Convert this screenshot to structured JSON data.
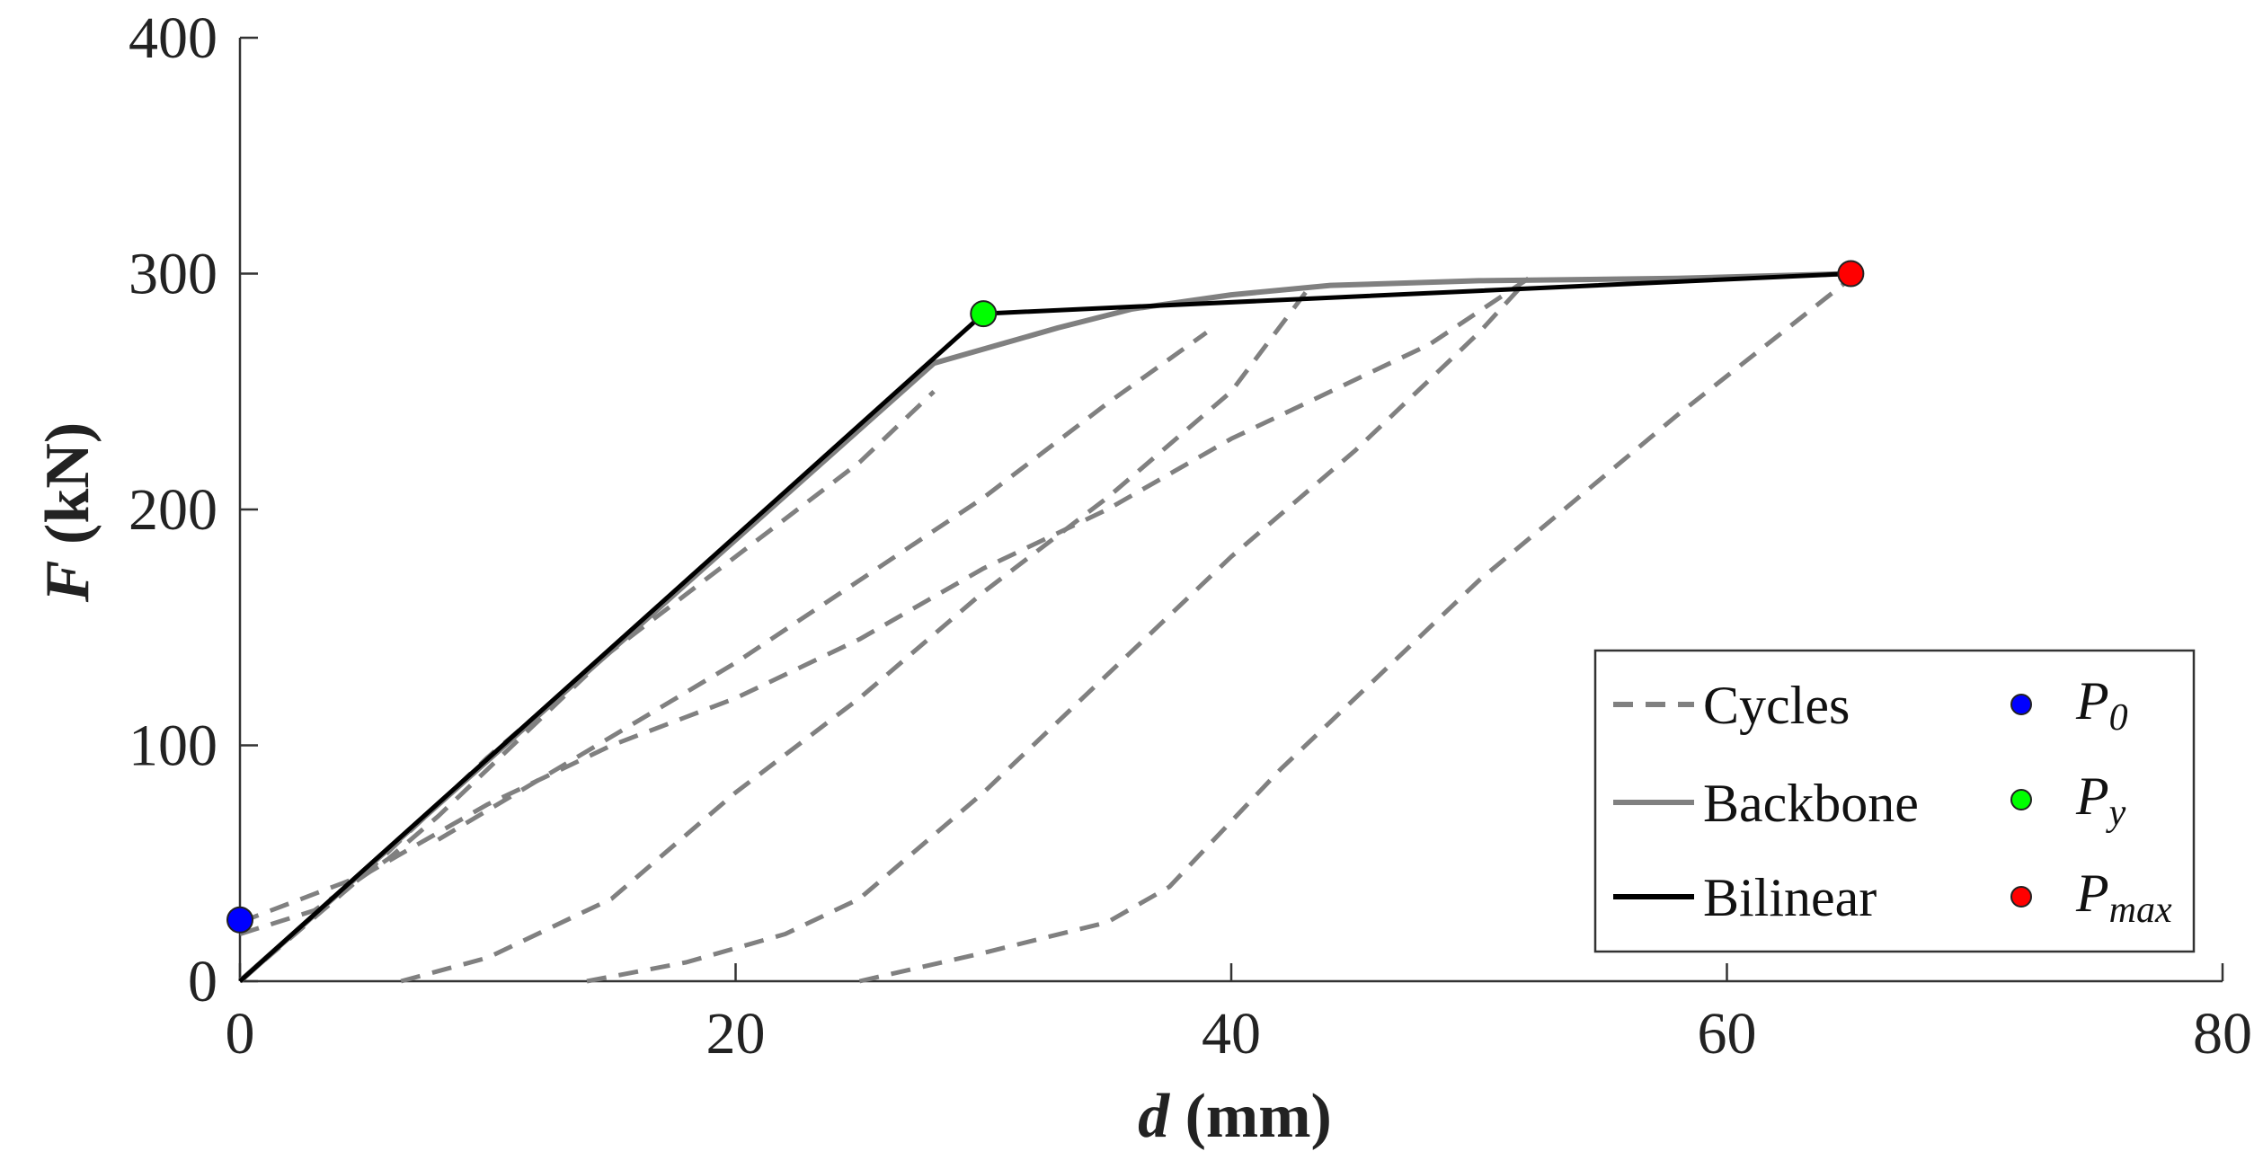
{
  "chart_data": {
    "type": "line",
    "xlabel_var": "d",
    "xlabel_unit": "(mm)",
    "ylabel_var": "F",
    "ylabel_unit": "(kN)",
    "xlim": [
      0,
      80
    ],
    "ylim": [
      0,
      400
    ],
    "xticks": [
      0,
      20,
      40,
      60,
      80
    ],
    "yticks": [
      0,
      100,
      200,
      300,
      400
    ],
    "legend_position": "bottom-right",
    "grid": false,
    "colors": {
      "cycles": "#808080",
      "backbone": "#808080",
      "bilinear": "#000000",
      "p0": "#0000ff",
      "py": "#00ff00",
      "pmax": "#ff0000"
    },
    "series": [
      {
        "name": "Cycles",
        "style": "dashed",
        "segments": [
          [
            [
              0,
              20
            ],
            [
              3,
              30
            ],
            [
              6,
              52
            ],
            [
              8,
              70
            ],
            [
              10,
              90
            ],
            [
              12,
              110
            ],
            [
              14,
              130
            ]
          ],
          [
            [
              0,
              25
            ],
            [
              5,
              45
            ],
            [
              10,
              75
            ],
            [
              15,
              100
            ],
            [
              20,
              120
            ],
            [
              25,
              145
            ],
            [
              30,
              175
            ],
            [
              35,
              200
            ],
            [
              40,
              230
            ],
            [
              45,
              255
            ],
            [
              48,
              270
            ],
            [
              52,
              298
            ]
          ],
          [
            [
              6.5,
              0
            ],
            [
              10,
              10
            ],
            [
              15,
              35
            ],
            [
              20,
              80
            ],
            [
              25,
              120
            ],
            [
              30,
              165
            ],
            [
              35,
              205
            ],
            [
              40,
              250
            ],
            [
              43,
              292
            ]
          ],
          [
            [
              14,
              0
            ],
            [
              18,
              8
            ],
            [
              22,
              20
            ],
            [
              25,
              35
            ],
            [
              30,
              80
            ],
            [
              35,
              130
            ],
            [
              40,
              180
            ],
            [
              45,
              225
            ],
            [
              50,
              275
            ],
            [
              52,
              298
            ]
          ],
          [
            [
              25,
              0
            ],
            [
              30,
              12
            ],
            [
              35,
              25
            ],
            [
              37.5,
              40
            ],
            [
              42,
              90
            ],
            [
              50,
              170
            ],
            [
              58,
              240
            ],
            [
              65,
              298
            ]
          ],
          [
            [
              0,
              0
            ],
            [
              5,
              45
            ],
            [
              10,
              95
            ],
            [
              15,
              140
            ],
            [
              20,
              180
            ],
            [
              25,
              220
            ],
            [
              28,
              250
            ]
          ],
          [
            [
              8,
              60
            ],
            [
              12,
              85
            ],
            [
              16,
              110
            ],
            [
              20,
              135
            ],
            [
              25,
              170
            ],
            [
              30,
              205
            ],
            [
              35,
              245
            ],
            [
              39,
              275
            ]
          ]
        ]
      },
      {
        "name": "Backbone",
        "style": "solid",
        "points": [
          [
            0,
            0
          ],
          [
            28,
            262
          ],
          [
            30,
            268
          ],
          [
            33,
            277
          ],
          [
            36,
            285
          ],
          [
            40,
            291
          ],
          [
            44,
            295
          ],
          [
            50,
            297
          ],
          [
            58,
            298
          ],
          [
            65,
            300
          ]
        ]
      },
      {
        "name": "Bilinear",
        "style": "solid",
        "points": [
          [
            0,
            0
          ],
          [
            30,
            283
          ],
          [
            65,
            300
          ]
        ]
      }
    ],
    "markers": [
      {
        "name": "P",
        "sub": "0",
        "x": 0,
        "y": 26,
        "color": "#0000ff"
      },
      {
        "name": "P",
        "sub": "y",
        "x": 30,
        "y": 283,
        "color": "#00ff00"
      },
      {
        "name": "P",
        "sub": "max",
        "x": 65,
        "y": 300,
        "color": "#ff0000"
      }
    ],
    "legend": {
      "cycles": "Cycles",
      "backbone": "Backbone",
      "bilinear": "Bilinear",
      "p0_main": "P",
      "p0_sub": "0",
      "py_main": "P",
      "py_sub": "y",
      "pmax_main": "P",
      "pmax_sub": "max"
    }
  }
}
